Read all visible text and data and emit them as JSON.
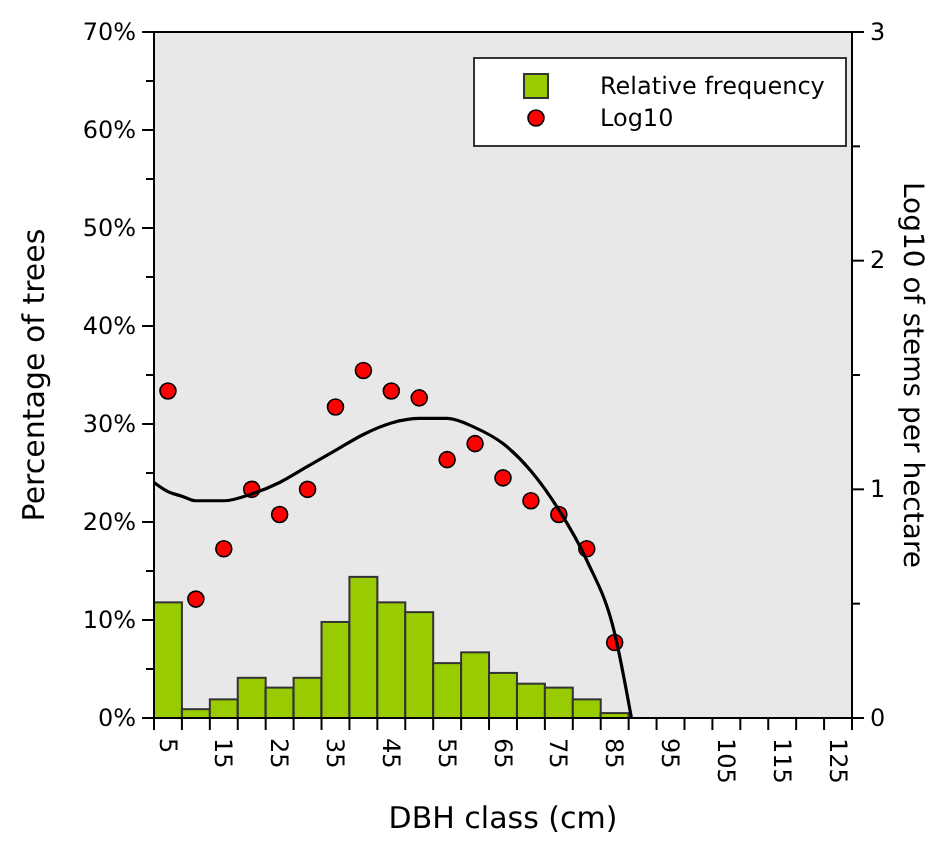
{
  "chart_data": {
    "type": "histogram",
    "xlabel": "DBH class (cm)",
    "ylabel": "Percentage of trees",
    "y2label": "Log10 of stems per hectare",
    "xlim": [
      2.5,
      127.5
    ],
    "xticks": [
      {
        "value": 5,
        "label": "5"
      },
      {
        "value": 15,
        "label": "15"
      },
      {
        "value": 25,
        "label": "25"
      },
      {
        "value": 35,
        "label": "35"
      },
      {
        "value": 45,
        "label": "45"
      },
      {
        "value": 55,
        "label": "55"
      },
      {
        "value": 65,
        "label": "65"
      },
      {
        "value": 75,
        "label": "75"
      },
      {
        "value": 85,
        "label": "85"
      },
      {
        "value": 95,
        "label": "95"
      },
      {
        "value": 105,
        "label": "105"
      },
      {
        "value": 115,
        "label": "115"
      },
      {
        "value": 125,
        "label": "125"
      }
    ],
    "ylim": [
      0,
      70
    ],
    "yticks": [
      {
        "value": 0,
        "label": "0%"
      },
      {
        "value": 5,
        "label": null
      },
      {
        "value": 10,
        "label": "10%"
      },
      {
        "value": 15,
        "label": null
      },
      {
        "value": 20,
        "label": "20%"
      },
      {
        "value": 25,
        "label": null
      },
      {
        "value": 30,
        "label": "30%"
      },
      {
        "value": 35,
        "label": null
      },
      {
        "value": 40,
        "label": "40%"
      },
      {
        "value": 45,
        "label": null
      },
      {
        "value": 50,
        "label": "50%"
      },
      {
        "value": 55,
        "label": null
      },
      {
        "value": 60,
        "label": "60%"
      },
      {
        "value": 65,
        "label": null
      },
      {
        "value": 70,
        "label": "70%"
      }
    ],
    "y2lim": [
      0,
      3
    ],
    "y2ticks": [
      0,
      {
        "value": 0.5,
        "label": null
      },
      1,
      {
        "value": 1.5,
        "label": null
      },
      2,
      {
        "value": 2.5,
        "label": null
      },
      3
    ],
    "legend": "top right",
    "series": [
      {
        "name": "Relative frequency",
        "color": "#99cc00",
        "bins": [
          2.5,
          7.5,
          12.5,
          17.5,
          22.5,
          27.5,
          32.5,
          37.5,
          42.5,
          47.5,
          52.5,
          57.5,
          62.5,
          67.5,
          72.5,
          77.5,
          82.5,
          87.5,
          92.5,
          97.5,
          102.5,
          107.5,
          112.5,
          117.5,
          122.5,
          127.5
        ],
        "values": [
          11.8,
          0.9,
          1.9,
          4.1,
          3.1,
          4.1,
          9.8,
          14.4,
          11.8,
          10.8,
          5.6,
          6.7,
          4.6,
          3.5,
          3.1,
          1.9,
          0.5,
          0,
          0,
          0,
          0,
          0,
          0,
          0,
          0
        ]
      },
      {
        "type": "scatter",
        "name": "Log10",
        "axis": "y2",
        "color": "#ff0000",
        "marker": "circle",
        "x": [
          5,
          10,
          15,
          20,
          25,
          30,
          35,
          40,
          45,
          50,
          55,
          60,
          65,
          70,
          75,
          80,
          85
        ],
        "values": [
          1.43,
          0.52,
          0.74,
          1.0,
          0.89,
          1.0,
          1.36,
          1.52,
          1.43,
          1.4,
          1.13,
          1.2,
          1.05,
          0.95,
          0.89,
          0.74,
          0.33
        ]
      },
      {
        "type": "line",
        "axis": "y2",
        "color": "#000000",
        "line_style": "solid",
        "marker": "none",
        "x": [
          2.5,
          5,
          7.5,
          10,
          12.5,
          15,
          20,
          25,
          30,
          35,
          40,
          45,
          50,
          55,
          60,
          65,
          70,
          75,
          80,
          85,
          88
        ],
        "values": [
          1.03,
          0.99,
          0.97,
          0.95,
          0.95,
          0.95,
          0.98,
          1.03,
          1.1,
          1.17,
          1.24,
          1.29,
          1.31,
          1.31,
          1.27,
          1.2,
          1.08,
          0.91,
          0.69,
          0.37,
          0
        ]
      }
    ]
  }
}
